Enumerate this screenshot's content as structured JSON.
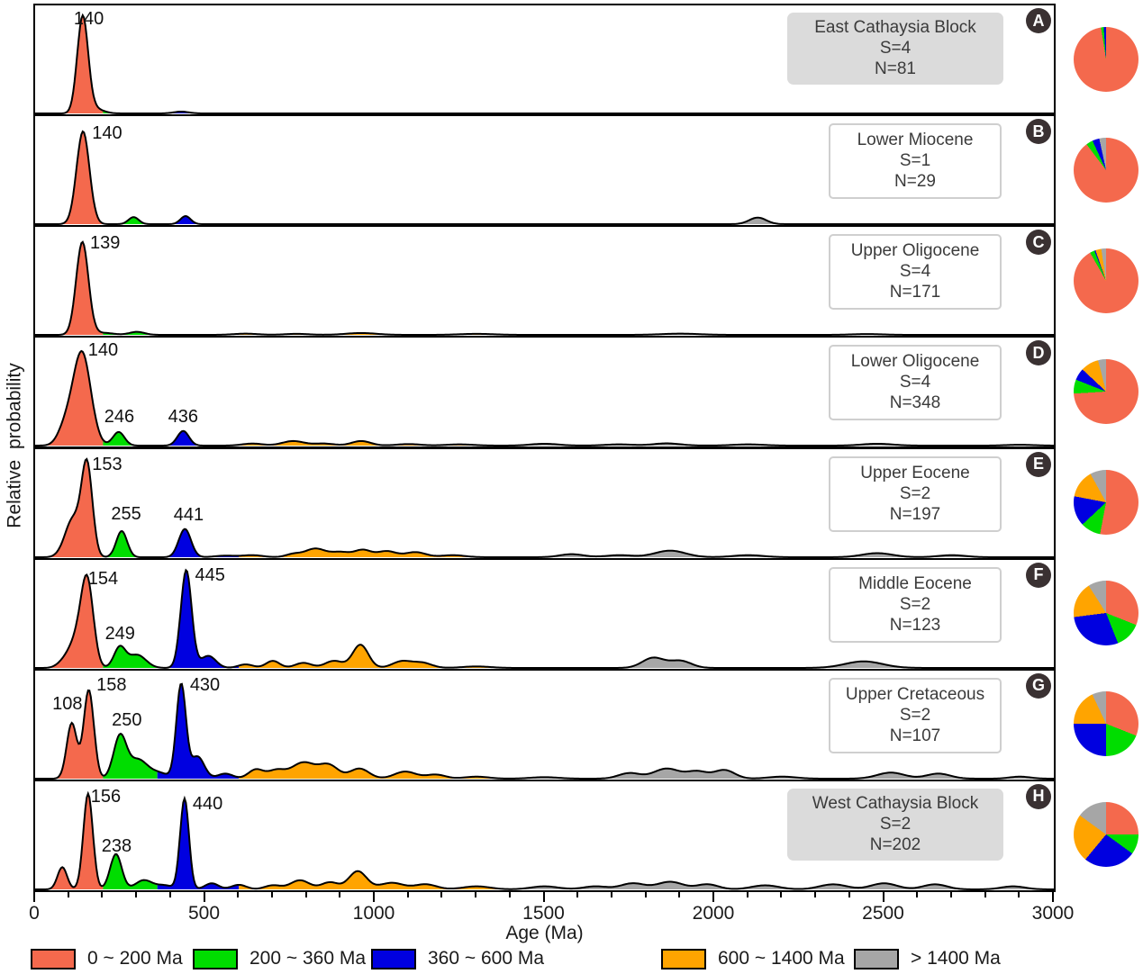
{
  "figure": {
    "ylabel": "Relative probability",
    "xlabel": "Age (Ma)"
  },
  "colors": {
    "bin1": "#F4694D",
    "bin2": "#00DD00",
    "bin3": "#0000E0",
    "bin4": "#FFA400",
    "bin5": "#A6A6A6",
    "badge_bg": "#3a3132",
    "gray_box": "#dbdbdb"
  },
  "legend": [
    {
      "label": "0 ~ 200 Ma",
      "color": "#F4694D",
      "x": 34
    },
    {
      "label": "200 ~ 360 Ma",
      "color": "#00DD00",
      "x": 214
    },
    {
      "label": "360 ~ 600 Ma",
      "color": "#0000E0",
      "x": 412
    },
    {
      "label": "600 ~ 1400 Ma",
      "color": "#FFA400",
      "x": 734
    },
    {
      "label": "> 1400 Ma",
      "color": "#A6A6A6",
      "x": 948
    }
  ],
  "chart_data": {
    "type": "area",
    "title": "Detrital zircon U-Pb age relative probability curves with age-group pie charts",
    "xlabel": "Age (Ma)",
    "ylabel": "Relative probability",
    "xlim": [
      0,
      3000
    ],
    "x_major_ticks": [
      0,
      500,
      1000,
      1500,
      2000,
      2500,
      3000
    ],
    "x_minor_step": 100,
    "grid": false,
    "age_bins": [
      {
        "label": "0 ~ 200 Ma",
        "range": [
          0,
          200
        ],
        "color": "#F4694D"
      },
      {
        "label": "200 ~ 360 Ma",
        "range": [
          200,
          360
        ],
        "color": "#00DD00"
      },
      {
        "label": "360 ~ 600 Ma",
        "range": [
          360,
          600
        ],
        "color": "#0000E0"
      },
      {
        "label": "600 ~ 1400 Ma",
        "range": [
          600,
          1400
        ],
        "color": "#FFA400"
      },
      {
        "label": "> 1400 Ma",
        "range": [
          1400,
          3000
        ],
        "color": "#A6A6A6"
      }
    ],
    "panels": [
      {
        "id": "A",
        "title": "East Cathaysia Block",
        "s": "S=4",
        "n": "N=81",
        "box_style": "gray",
        "peaks": [
          {
            "label": "140",
            "lx": 158,
            "ly": 0.04
          }
        ],
        "components": [
          [
            140,
            16,
            0.95
          ],
          [
            172,
            26,
            0.05
          ],
          [
            430,
            22,
            0.018
          ]
        ],
        "pie": [
          97.5,
          1.3,
          1.2,
          0,
          0
        ]
      },
      {
        "id": "B",
        "title": "Lower Miocene",
        "s": "S=1",
        "n": "N=29",
        "box_style": "white",
        "peaks": [
          {
            "label": "140",
            "lx": 212,
            "ly": 0.07
          }
        ],
        "components": [
          [
            141,
            19,
            0.92
          ],
          [
            290,
            15,
            0.07
          ],
          [
            443,
            15,
            0.08
          ],
          [
            2128,
            25,
            0.065
          ]
        ],
        "pie": [
          89.7,
          3.4,
          3.5,
          0,
          3.4
        ]
      },
      {
        "id": "C",
        "title": "Upper Oligocene",
        "s": "S=4",
        "n": "N=171",
        "box_style": "white",
        "peaks": [
          {
            "label": "139",
            "lx": 206,
            "ly": 0.06
          }
        ],
        "components": [
          [
            139,
            18,
            0.92
          ],
          [
            200,
            30,
            0.02
          ],
          [
            300,
            22,
            0.03
          ],
          [
            620,
            35,
            0.012
          ],
          [
            770,
            35,
            0.01
          ],
          [
            960,
            45,
            0.018
          ],
          [
            1300,
            50,
            0.01
          ],
          [
            1900,
            55,
            0.012
          ],
          [
            2450,
            45,
            0.008
          ]
        ],
        "pie": [
          91.8,
          2.3,
          0.6,
          2.9,
          2.4
        ]
      },
      {
        "id": "D",
        "title": "Lower Oligocene",
        "s": "S=4",
        "n": "N=348",
        "box_style": "white",
        "peaks": [
          {
            "label": "140",
            "lx": 200,
            "ly": 0.03
          },
          {
            "label": "246",
            "lx": 248,
            "ly": 0.62
          },
          {
            "label": "436",
            "lx": 436,
            "ly": 0.62
          }
        ],
        "components": [
          [
            138,
            26,
            0.92
          ],
          [
            90,
            22,
            0.18
          ],
          [
            246,
            17,
            0.135
          ],
          [
            436,
            17,
            0.145
          ],
          [
            640,
            30,
            0.02
          ],
          [
            760,
            32,
            0.045
          ],
          [
            850,
            30,
            0.02
          ],
          [
            960,
            28,
            0.045
          ],
          [
            1100,
            35,
            0.015
          ],
          [
            1250,
            40,
            0.012
          ],
          [
            1500,
            40,
            0.018
          ],
          [
            1720,
            40,
            0.012
          ],
          [
            1860,
            40,
            0.022
          ],
          [
            2100,
            45,
            0.012
          ],
          [
            2480,
            45,
            0.018
          ],
          [
            2900,
            40,
            0.008
          ]
        ],
        "pie": [
          74,
          7,
          6,
          9,
          4
        ]
      },
      {
        "id": "E",
        "title": "Upper Eocene",
        "s": "S=2",
        "n": "N=197",
        "box_style": "white",
        "peaks": [
          {
            "label": "153",
            "lx": 212,
            "ly": 0.06
          },
          {
            "label": "255",
            "lx": 268,
            "ly": 0.5
          },
          {
            "label": "441",
            "lx": 452,
            "ly": 0.51
          }
        ],
        "components": [
          [
            112,
            24,
            0.38
          ],
          [
            153,
            16,
            0.88
          ],
          [
            255,
            16,
            0.26
          ],
          [
            441,
            18,
            0.28
          ],
          [
            560,
            30,
            0.015
          ],
          [
            640,
            30,
            0.02
          ],
          [
            760,
            22,
            0.03
          ],
          [
            825,
            30,
            0.085
          ],
          [
            900,
            28,
            0.05
          ],
          [
            965,
            24,
            0.07
          ],
          [
            1035,
            28,
            0.06
          ],
          [
            1120,
            30,
            0.05
          ],
          [
            1230,
            35,
            0.02
          ],
          [
            1580,
            35,
            0.03
          ],
          [
            1720,
            40,
            0.02
          ],
          [
            1870,
            45,
            0.065
          ],
          [
            2100,
            45,
            0.02
          ],
          [
            2480,
            45,
            0.04
          ],
          [
            2700,
            40,
            0.02
          ]
        ],
        "pie": [
          53,
          10,
          15,
          14,
          8
        ]
      },
      {
        "id": "F",
        "title": "Middle Eocene",
        "s": "S=2",
        "n": "N=123",
        "box_style": "white",
        "peaks": [
          {
            "label": "154",
            "lx": 200,
            "ly": 0.09
          },
          {
            "label": "249",
            "lx": 250,
            "ly": 0.58
          },
          {
            "label": "445",
            "lx": 515,
            "ly": 0.06
          }
        ],
        "components": [
          [
            85,
            20,
            0.05
          ],
          [
            125,
            24,
            0.28
          ],
          [
            154,
            18,
            0.78
          ],
          [
            249,
            17,
            0.2
          ],
          [
            300,
            26,
            0.13
          ],
          [
            445,
            16,
            0.97
          ],
          [
            510,
            22,
            0.12
          ],
          [
            620,
            22,
            0.035
          ],
          [
            700,
            20,
            0.07
          ],
          [
            790,
            24,
            0.05
          ],
          [
            880,
            26,
            0.07
          ],
          [
            958,
            23,
            0.23
          ],
          [
            1080,
            28,
            0.065
          ],
          [
            1140,
            28,
            0.05
          ],
          [
            1300,
            40,
            0.015
          ],
          [
            1820,
            32,
            0.1
          ],
          [
            1900,
            32,
            0.07
          ],
          [
            2440,
            55,
            0.065
          ]
        ],
        "pie": [
          31,
          13,
          29,
          18,
          9
        ]
      },
      {
        "id": "G",
        "title": "Upper Cretaceous",
        "s": "S=2",
        "n": "N=107",
        "box_style": "white",
        "peaks": [
          {
            "label": "108",
            "lx": 95,
            "ly": 0.22
          },
          {
            "label": "158",
            "lx": 225,
            "ly": 0.05
          },
          {
            "label": "250",
            "lx": 270,
            "ly": 0.36
          },
          {
            "label": "430",
            "lx": 500,
            "ly": 0.05
          }
        ],
        "components": [
          [
            108,
            15,
            0.55
          ],
          [
            158,
            15,
            0.88
          ],
          [
            250,
            19,
            0.42
          ],
          [
            302,
            26,
            0.18
          ],
          [
            360,
            30,
            0.06
          ],
          [
            430,
            14,
            0.93
          ],
          [
            478,
            20,
            0.22
          ],
          [
            560,
            22,
            0.05
          ],
          [
            650,
            22,
            0.09
          ],
          [
            710,
            25,
            0.08
          ],
          [
            790,
            35,
            0.16
          ],
          [
            865,
            28,
            0.13
          ],
          [
            955,
            28,
            0.1
          ],
          [
            1090,
            32,
            0.07
          ],
          [
            1180,
            28,
            0.04
          ],
          [
            1300,
            35,
            0.02
          ],
          [
            1500,
            40,
            0.015
          ],
          [
            1750,
            32,
            0.055
          ],
          [
            1860,
            38,
            0.1
          ],
          [
            1950,
            30,
            0.07
          ],
          [
            2030,
            30,
            0.085
          ],
          [
            2200,
            40,
            0.02
          ],
          [
            2520,
            40,
            0.06
          ],
          [
            2660,
            35,
            0.05
          ],
          [
            2900,
            30,
            0.02
          ]
        ],
        "pie": [
          31,
          19,
          25,
          18,
          7
        ]
      },
      {
        "id": "H",
        "title": "West Cathaysia Block",
        "s": "S=2",
        "n": "N=202",
        "box_style": "gray",
        "peaks": [
          {
            "label": "156",
            "lx": 208,
            "ly": 0.06
          },
          {
            "label": "238",
            "lx": 240,
            "ly": 0.5
          },
          {
            "label": "440",
            "lx": 508,
            "ly": 0.12
          }
        ],
        "components": [
          [
            80,
            14,
            0.22
          ],
          [
            156,
            14,
            0.95
          ],
          [
            238,
            17,
            0.35
          ],
          [
            320,
            24,
            0.09
          ],
          [
            380,
            25,
            0.04
          ],
          [
            440,
            13,
            0.9
          ],
          [
            520,
            20,
            0.06
          ],
          [
            600,
            22,
            0.045
          ],
          [
            700,
            24,
            0.04
          ],
          [
            780,
            28,
            0.09
          ],
          [
            868,
            25,
            0.07
          ],
          [
            950,
            26,
            0.18
          ],
          [
            1050,
            35,
            0.065
          ],
          [
            1150,
            32,
            0.05
          ],
          [
            1300,
            40,
            0.03
          ],
          [
            1500,
            40,
            0.03
          ],
          [
            1650,
            35,
            0.03
          ],
          [
            1760,
            35,
            0.06
          ],
          [
            1870,
            38,
            0.075
          ],
          [
            1980,
            32,
            0.05
          ],
          [
            2150,
            40,
            0.04
          ],
          [
            2350,
            40,
            0.05
          ],
          [
            2500,
            38,
            0.06
          ],
          [
            2650,
            35,
            0.05
          ],
          [
            2880,
            35,
            0.03
          ]
        ],
        "pie": [
          25,
          10,
          26,
          24,
          15
        ]
      }
    ]
  }
}
